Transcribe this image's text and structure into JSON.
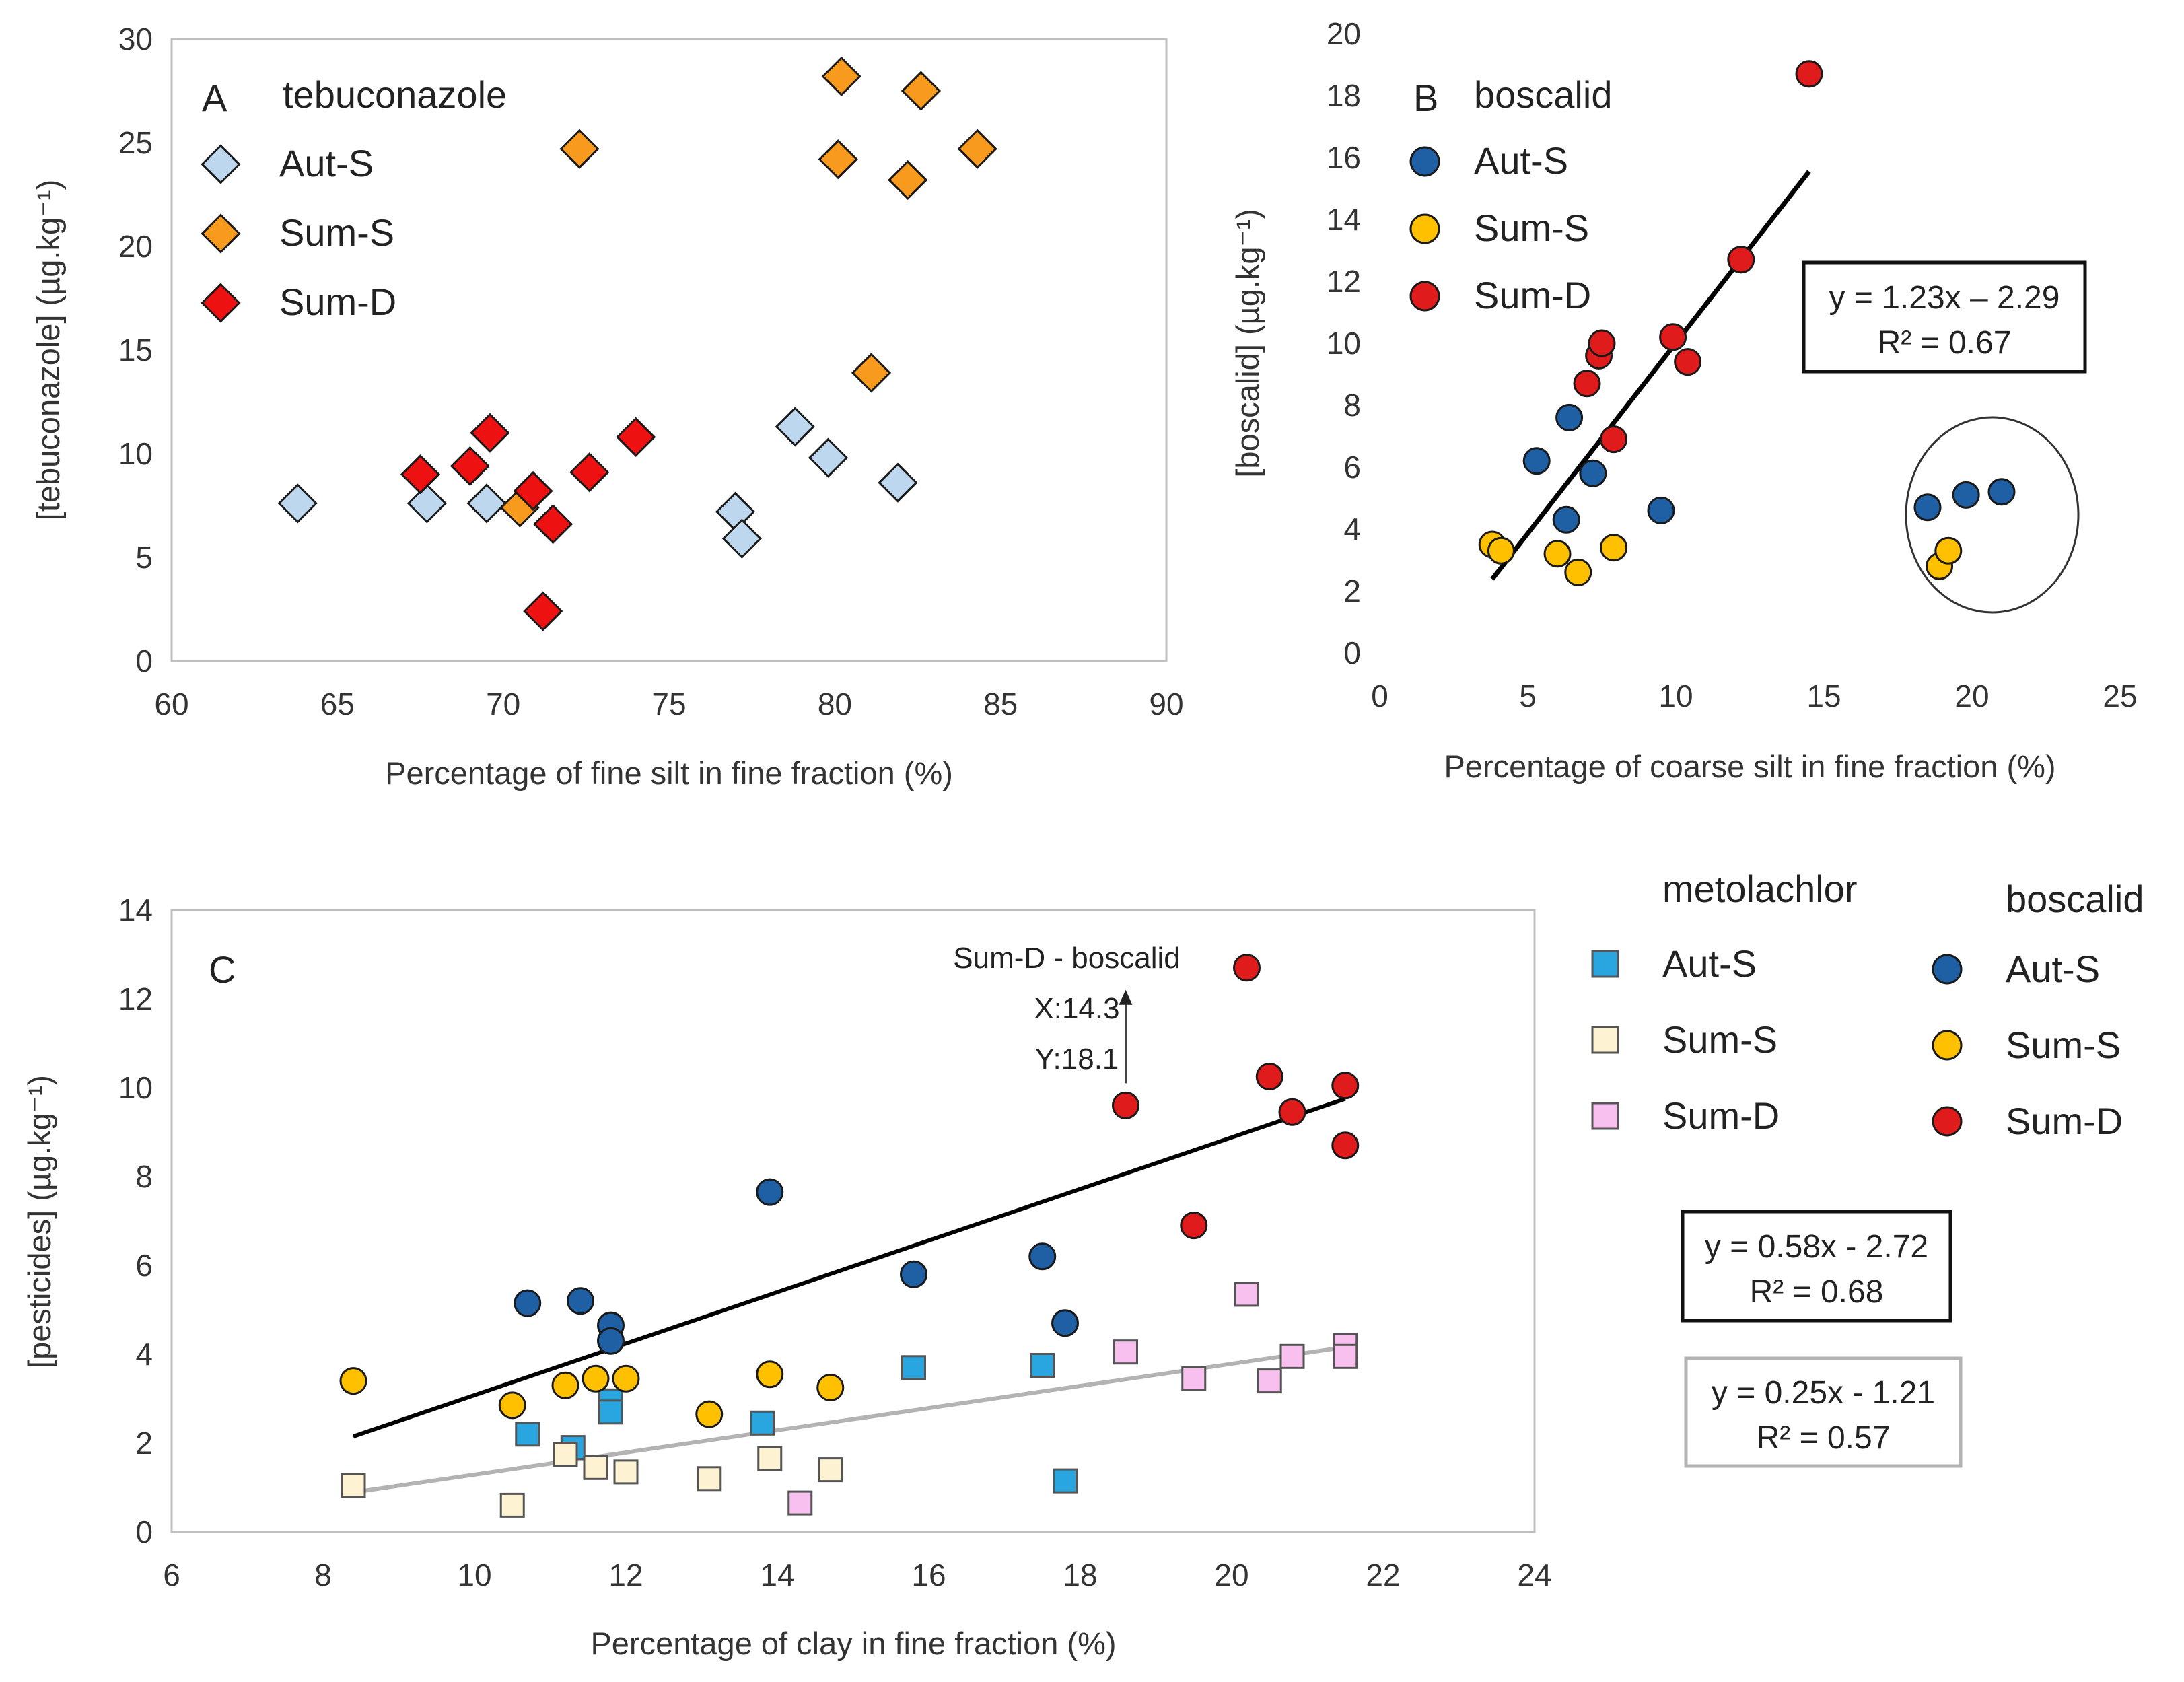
{
  "chart_data": [
    {
      "id": "A",
      "type": "scatter",
      "panel_letter": "A",
      "title": "tebuconazole",
      "xlabel": "Percentage of fine silt in fine fraction (%)",
      "ylabel": "[tebuconazole] (µg.kg⁻¹)",
      "xlim": [
        60,
        90
      ],
      "ylim": [
        0,
        30
      ],
      "xticks": [
        60,
        65,
        70,
        75,
        80,
        85,
        90
      ],
      "yticks": [
        0,
        5,
        10,
        15,
        20,
        25,
        30
      ],
      "marker": "diamond",
      "legend_position": "top-left",
      "series": [
        {
          "name": "Aut-S",
          "color": "#bdd7ee",
          "points": [
            [
              63.8,
              7.6
            ],
            [
              67.7,
              7.6
            ],
            [
              69.5,
              7.6
            ],
            [
              77.0,
              7.2
            ],
            [
              77.2,
              5.9
            ],
            [
              78.8,
              11.3
            ],
            [
              79.8,
              9.8
            ],
            [
              81.9,
              8.6
            ]
          ]
        },
        {
          "name": "Sum-S",
          "color": "#f79a1e",
          "points": [
            [
              70.5,
              7.4
            ],
            [
              72.3,
              24.7
            ],
            [
              80.1,
              24.2
            ],
            [
              80.2,
              28.2
            ],
            [
              81.1,
              13.9
            ],
            [
              82.2,
              23.2
            ],
            [
              82.6,
              27.5
            ],
            [
              84.3,
              24.7
            ]
          ]
        },
        {
          "name": "Sum-D",
          "color": "#ee1111",
          "points": [
            [
              67.5,
              9.0
            ],
            [
              69.0,
              9.4
            ],
            [
              69.6,
              11.0
            ],
            [
              70.9,
              8.2
            ],
            [
              71.2,
              2.4
            ],
            [
              71.5,
              6.6
            ],
            [
              72.6,
              9.1
            ],
            [
              74.0,
              10.8
            ]
          ]
        }
      ]
    },
    {
      "id": "B",
      "type": "scatter",
      "panel_letter": "B",
      "title": "boscalid",
      "xlabel": "Percentage of coarse silt in fine fraction (%)",
      "ylabel": "[boscalid] (µg.kg⁻¹)",
      "xlim": [
        0,
        25
      ],
      "ylim": [
        0,
        20
      ],
      "xticks": [
        0,
        5,
        10,
        15,
        20,
        25
      ],
      "yticks": [
        0,
        2,
        4,
        6,
        8,
        10,
        12,
        14,
        16,
        18,
        20
      ],
      "marker": "circle",
      "legend_position": "top-left",
      "trendline": {
        "x": [
          3.8,
          14.5
        ],
        "y": [
          2.38,
          15.55
        ],
        "color": "#000000"
      },
      "equation": "y = 1.23x – 2.29",
      "r2": "R² = 0.67",
      "outlier_ellipse": true,
      "series": [
        {
          "name": "Aut-S",
          "color": "#1f5fa3",
          "points": [
            [
              5.3,
              6.2
            ],
            [
              6.3,
              4.3
            ],
            [
              6.4,
              7.6
            ],
            [
              7.2,
              5.8
            ],
            [
              9.5,
              4.6
            ],
            [
              18.5,
              4.7
            ],
            [
              19.8,
              5.1
            ],
            [
              21.0,
              5.2
            ]
          ]
        },
        {
          "name": "Sum-S",
          "color": "#ffc000",
          "points": [
            [
              3.8,
              3.5
            ],
            [
              4.1,
              3.3
            ],
            [
              6.0,
              3.2
            ],
            [
              6.7,
              2.6
            ],
            [
              7.9,
              3.4
            ],
            [
              18.9,
              2.8
            ],
            [
              19.2,
              3.3
            ]
          ]
        },
        {
          "name": "Sum-D",
          "color": "#e01b1b",
          "points": [
            [
              7.0,
              8.7
            ],
            [
              7.4,
              9.6
            ],
            [
              7.5,
              10.0
            ],
            [
              7.9,
              6.9
            ],
            [
              9.9,
              10.2
            ],
            [
              10.4,
              9.4
            ],
            [
              12.2,
              12.7
            ],
            [
              14.5,
              18.7
            ]
          ]
        }
      ]
    },
    {
      "id": "C",
      "type": "scatter",
      "panel_letter": "C",
      "xlabel": "Percentage of clay in fine fraction (%)",
      "ylabel": "[pesticides] (µg.kg⁻¹)",
      "xlim": [
        6,
        24
      ],
      "ylim": [
        0,
        14
      ],
      "xticks": [
        6,
        8,
        10,
        12,
        14,
        16,
        18,
        20,
        22,
        24
      ],
      "yticks": [
        0,
        2,
        4,
        6,
        8,
        10,
        12,
        14
      ],
      "annotation": {
        "lines": [
          "Sum-D - boscalid",
          "X:14.3",
          "Y:18.1"
        ],
        "arrow_x": 18.6,
        "arrow_y_from": 10.1,
        "arrow_y_to": 12.2
      },
      "legend_groups": [
        {
          "title": "metolachlor",
          "marker": "square",
          "items": [
            "Aut-S",
            "Sum-S",
            "Sum-D"
          ]
        },
        {
          "title": "boscalid",
          "marker": "circle",
          "items": [
            "Aut-S",
            "Sum-S",
            "Sum-D"
          ]
        }
      ],
      "trendlines": [
        {
          "name": "boscalid",
          "x": [
            8.4,
            21.5
          ],
          "y": [
            2.15,
            9.75
          ],
          "color": "#000000",
          "equation": "y = 0.58x - 2.72",
          "r2": "R² = 0.68"
        },
        {
          "name": "metolachlor",
          "x": [
            8.4,
            21.5
          ],
          "y": [
            0.89,
            4.16
          ],
          "color": "#b3b3b3",
          "equation": "y = 0.25x - 1.21",
          "r2": "R² = 0.57"
        }
      ],
      "series": [
        {
          "name": "boscalid Aut-S",
          "compound": "boscalid",
          "group": "Aut-S",
          "marker": "circle",
          "color": "#1f5fa3",
          "points": [
            [
              10.7,
              5.15
            ],
            [
              11.4,
              5.2
            ],
            [
              11.8,
              4.65
            ],
            [
              11.8,
              4.3
            ],
            [
              13.9,
              7.65
            ],
            [
              15.8,
              5.8
            ],
            [
              17.5,
              6.2
            ],
            [
              17.8,
              4.7
            ]
          ]
        },
        {
          "name": "boscalid Sum-S",
          "compound": "boscalid",
          "group": "Sum-S",
          "marker": "circle",
          "color": "#ffc000",
          "points": [
            [
              8.4,
              3.4
            ],
            [
              10.5,
              2.85
            ],
            [
              11.2,
              3.3
            ],
            [
              11.6,
              3.45
            ],
            [
              12.0,
              3.45
            ],
            [
              13.1,
              2.65
            ],
            [
              13.9,
              3.55
            ],
            [
              14.7,
              3.25
            ]
          ]
        },
        {
          "name": "boscalid Sum-D",
          "compound": "boscalid",
          "group": "Sum-D",
          "marker": "circle",
          "color": "#e01b1b",
          "points": [
            [
              18.6,
              9.6
            ],
            [
              19.5,
              6.9
            ],
            [
              20.2,
              12.7
            ],
            [
              20.5,
              10.25
            ],
            [
              20.8,
              9.45
            ],
            [
              21.5,
              10.05
            ],
            [
              21.5,
              8.7
            ]
          ]
        },
        {
          "name": "metolachlor Aut-S",
          "compound": "metolachlor",
          "group": "Aut-S",
          "marker": "square",
          "color": "#29a6df",
          "points": [
            [
              10.7,
              2.2
            ],
            [
              11.3,
              1.9
            ],
            [
              11.8,
              2.95
            ],
            [
              11.8,
              2.7
            ],
            [
              13.8,
              2.45
            ],
            [
              15.8,
              3.7
            ],
            [
              17.5,
              3.75
            ],
            [
              17.8,
              1.15
            ]
          ]
        },
        {
          "name": "metolachlor Sum-S",
          "compound": "metolachlor",
          "group": "Sum-S",
          "marker": "square",
          "color": "#fdf3d3",
          "points": [
            [
              8.4,
              1.05
            ],
            [
              10.5,
              0.6
            ],
            [
              11.2,
              1.75
            ],
            [
              11.6,
              1.45
            ],
            [
              12.0,
              1.35
            ],
            [
              13.1,
              1.2
            ],
            [
              13.9,
              1.65
            ],
            [
              14.7,
              1.4
            ]
          ]
        },
        {
          "name": "metolachlor Sum-D",
          "compound": "metolachlor",
          "group": "Sum-D",
          "marker": "square",
          "color": "#f8c0ef",
          "points": [
            [
              14.3,
              0.65
            ],
            [
              18.6,
              4.05
            ],
            [
              19.5,
              3.45
            ],
            [
              20.2,
              5.35
            ],
            [
              20.5,
              3.4
            ],
            [
              20.8,
              3.95
            ],
            [
              21.5,
              4.2
            ],
            [
              21.5,
              3.95
            ]
          ]
        }
      ]
    }
  ]
}
